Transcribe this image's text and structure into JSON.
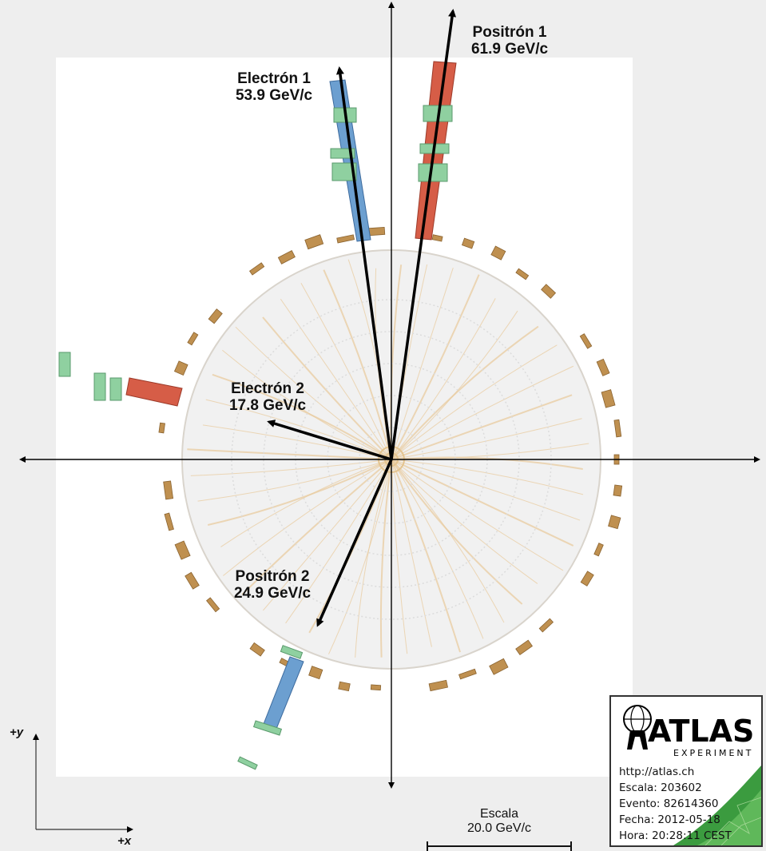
{
  "tracks": [
    {
      "name": "Positrón 1",
      "momentum": "61.9 GeV/c"
    },
    {
      "name": "Electrón 1",
      "momentum": "53.9 GeV/c"
    },
    {
      "name": "Electrón 2",
      "momentum": "17.8 GeV/c"
    },
    {
      "name": "Positrón 2",
      "momentum": "24.9 GeV/c"
    }
  ],
  "axes": {
    "y_label": "+y",
    "x_label": "+x"
  },
  "scale": {
    "title": "Escala",
    "value": "20.0 GeV/c"
  },
  "logo": {
    "name": "ATLAS",
    "subtitle": "EXPERIMENT"
  },
  "info": {
    "url": "http://atlas.ch",
    "run": "Escala: 203602",
    "event": "Evento: 82614360",
    "date": "Fecha: 2012-05-18",
    "time": "Hora: 20:28:11 CEST"
  },
  "colors": {
    "electron_deposit": "#6c9fd0",
    "positron_deposit": "#d65d47",
    "hadronic_cell": "#bf9050",
    "em_cell": "#8fd0a0",
    "inner_tracks": "#e8c99a",
    "arrow": "#000000"
  }
}
